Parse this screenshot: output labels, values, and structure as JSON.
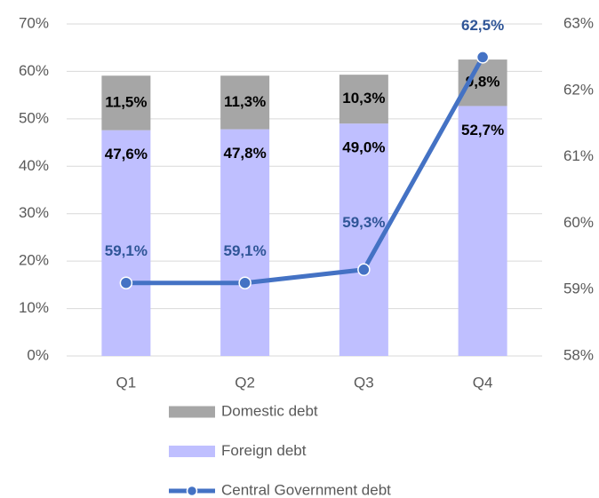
{
  "chart_data": {
    "type": "bar",
    "categories": [
      "Q1",
      "Q2",
      "Q3",
      "Q4"
    ],
    "series": [
      {
        "name": "Domestic debt",
        "type": "bar",
        "color": "#a6a6a6",
        "values": [
          11.5,
          11.3,
          10.3,
          9.8
        ],
        "value_labels": [
          "11,5%",
          "11,3%",
          "10,3%",
          "9,8%"
        ]
      },
      {
        "name": "Foreign debt",
        "type": "bar",
        "color": "#bfbfff",
        "values": [
          47.6,
          47.8,
          49.0,
          52.7
        ],
        "value_labels": [
          "47,6%",
          "47,8%",
          "49,0%",
          "52,7%"
        ]
      },
      {
        "name": "Central Government debt",
        "type": "line",
        "axis": "y2",
        "color": "#4472c4",
        "values": [
          59.1,
          59.1,
          59.3,
          62.5
        ],
        "value_labels": [
          "59,1%",
          "59,1%",
          "59,3%",
          "62,5%"
        ]
      }
    ],
    "stacked": true,
    "ylim": [
      0,
      70
    ],
    "yticks": [
      {
        "value": 0,
        "label": "0%"
      },
      {
        "value": 10,
        "label": "10%"
      },
      {
        "value": 20,
        "label": "20%"
      },
      {
        "value": 30,
        "label": "30%"
      },
      {
        "value": 40,
        "label": "40%"
      },
      {
        "value": 50,
        "label": "50%"
      },
      {
        "value": 60,
        "label": "60%"
      },
      {
        "value": 70,
        "label": "70%"
      }
    ],
    "y2lim": [
      58,
      63
    ],
    "y2ticks": [
      {
        "value": 58,
        "label": "58%"
      },
      {
        "value": 59,
        "label": "59%"
      },
      {
        "value": 60,
        "label": "60%"
      },
      {
        "value": 61,
        "label": "61%"
      },
      {
        "value": 62,
        "label": "62%"
      },
      {
        "value": 63,
        "label": "63%"
      }
    ],
    "grid": true,
    "legend": "bottom"
  }
}
